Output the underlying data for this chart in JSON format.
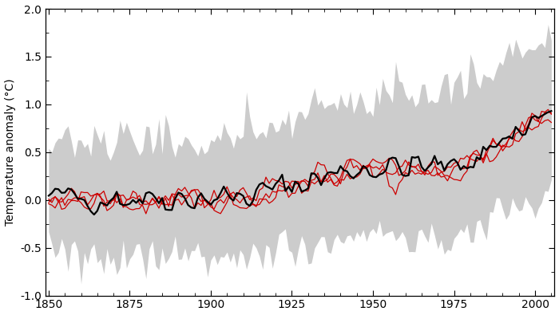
{
  "years_start": 1850,
  "years_end": 2005,
  "ylabel": "Temperature anomaly (°C)",
  "ylim": [
    -1.0,
    2.0
  ],
  "yticks": [
    -1.0,
    -0.5,
    0.0,
    0.5,
    1.0,
    1.5,
    2.0
  ],
  "xlim": [
    1849,
    2006
  ],
  "xticks": [
    1850,
    1875,
    1900,
    1925,
    1950,
    1975,
    2000
  ],
  "shade_color": "#cccccc",
  "red_color": "#cc0000",
  "black_color": "#000000",
  "linewidth_red": 0.9,
  "linewidth_black": 1.6,
  "background_color": "#ffffff",
  "figsize": [
    7.0,
    3.95
  ],
  "dpi": 100
}
